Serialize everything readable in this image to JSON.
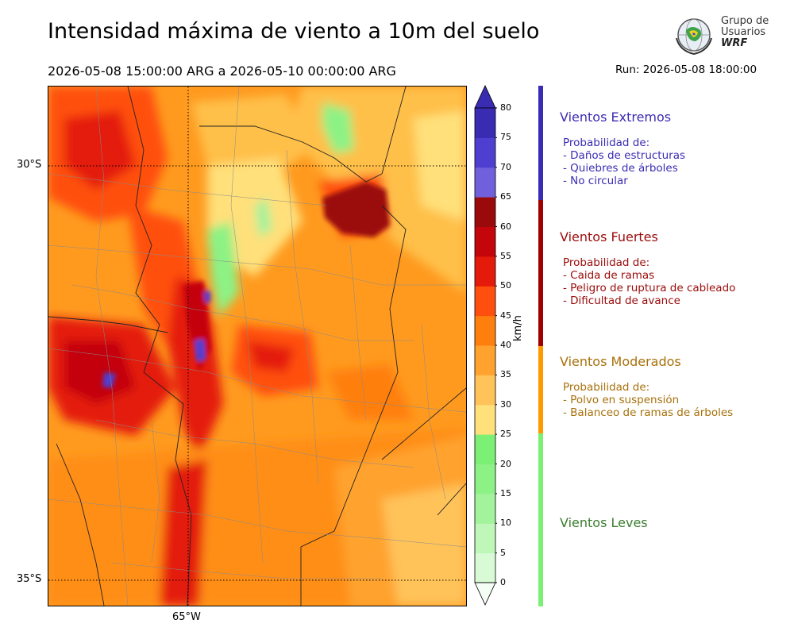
{
  "header": {
    "title": "Intensidad máxima de viento a 10m del suelo",
    "period": "2026-05-08 15:00:00 ARG  a  2026-05-10 00:00:00 ARG",
    "run": "Run: 2026-05-08 18:00:00"
  },
  "logo": {
    "line1": "Grupo de",
    "line2": "Usuarios",
    "line3": "WRF"
  },
  "map": {
    "lat_labels": [
      "30°S",
      "35°S"
    ],
    "lon_labels": [
      "65°W"
    ]
  },
  "colorbar": {
    "units": "km/h",
    "ticks": [
      "0",
      "5",
      "10",
      "15",
      "20",
      "25",
      "30",
      "35",
      "40",
      "45",
      "50",
      "55",
      "60",
      "65",
      "70",
      "75",
      "80"
    ],
    "colors": [
      "#f5fef5",
      "#d8fad5",
      "#bff7b9",
      "#a3f29c",
      "#8df285",
      "#7cf075",
      "#ffe07a",
      "#ffc35a",
      "#ffa32e",
      "#ff7f0e",
      "#ff4f0e",
      "#e41a0a",
      "#c4050b",
      "#9b0a0a",
      "#7060dc",
      "#4f3fd0",
      "#3a2bb3"
    ],
    "top_color": "#3a2bb3",
    "bottom_color": "#ffffff"
  },
  "categories": [
    {
      "title": "Vientos Extremos",
      "color": "#3a2bb3",
      "lines": [
        "Probabilidad de:",
        "- Daños de estructuras",
        "- Quiebres de árboles",
        "- No circular"
      ]
    },
    {
      "title": "Vientos Fuertes",
      "color": "#9b0a0a",
      "lines": [
        "Probabilidad de:",
        "- Caida de ramas",
        "- Peligro de ruptura de cableado",
        "- Dificultad de avance"
      ]
    },
    {
      "title": "Vientos Moderados",
      "color": "#a8700a",
      "lines": [
        "Probabilidad de:",
        "- Polvo en suspensión",
        "- Balanceo de ramas de árboles"
      ]
    },
    {
      "title": "Vientos Leves",
      "color": "#3a7d2e",
      "lines": []
    }
  ],
  "category_bar_colors": [
    "#3a2bb3",
    "#a00000",
    "#ff9900",
    "#7cf075"
  ]
}
